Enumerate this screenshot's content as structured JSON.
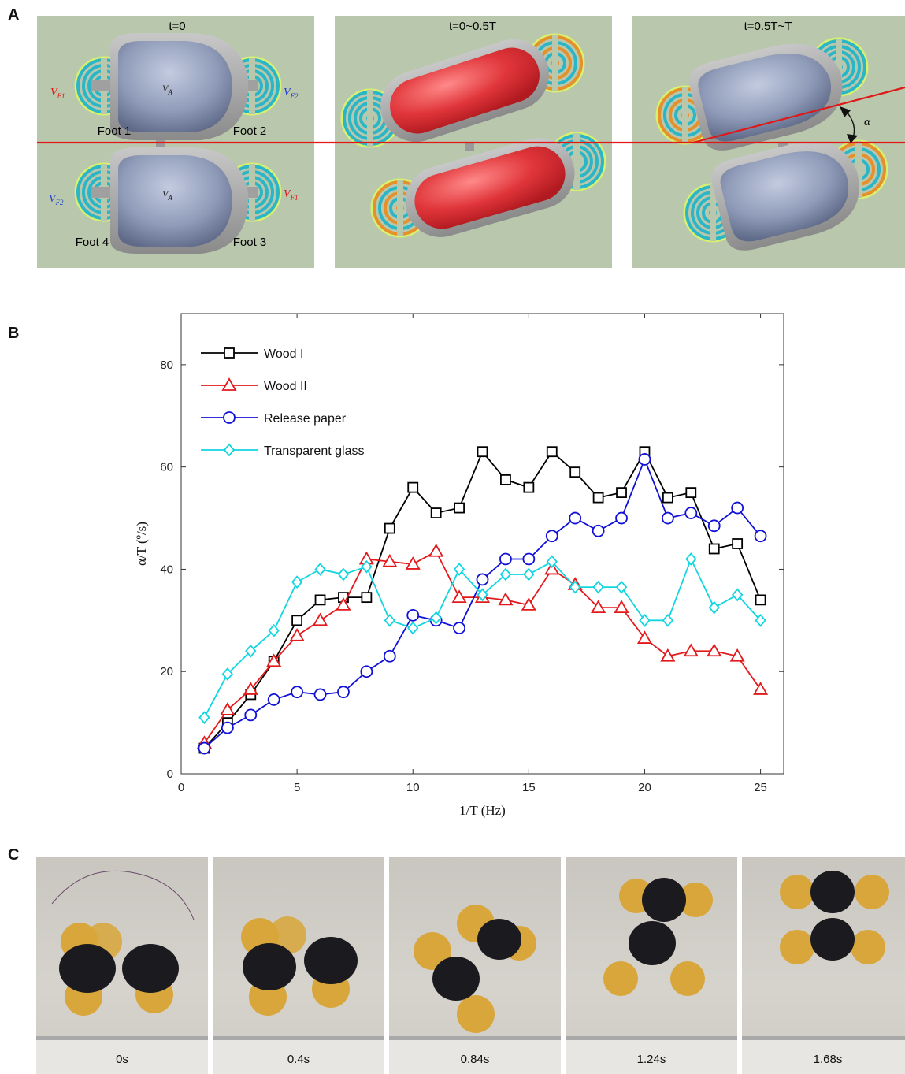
{
  "panels": {
    "a": "A",
    "b": "B",
    "c": "C"
  },
  "panel_a": {
    "frames": [
      {
        "title": "t=0"
      },
      {
        "title": "t=0~0.5T"
      },
      {
        "title": "t=0.5T~T"
      }
    ],
    "foot_labels": [
      "Foot 1",
      "Foot 2",
      "Foot 3",
      "Foot 4"
    ],
    "voltage_labels": {
      "vf1": "V_F1",
      "vf2": "V_F2",
      "va": "V_A"
    },
    "angle_label": "α",
    "colors": {
      "background": "#b9c7ad",
      "body_blue": "#8f9bb8",
      "body_red": "#e0353a",
      "shell": "#a7a7a7",
      "line_red": "#e01818",
      "vf1_color": "#e01818",
      "vf2_color": "#1f3fd0"
    }
  },
  "chart_data": {
    "type": "line",
    "title": "",
    "xlabel": "1/T (Hz)",
    "ylabel": "α/T (º/s)",
    "xlim": [
      0,
      26
    ],
    "ylim": [
      0,
      90
    ],
    "xticks": [
      0,
      5,
      10,
      15,
      20,
      25
    ],
    "yticks": [
      0,
      20,
      40,
      60,
      80
    ],
    "x": [
      1,
      2,
      3,
      4,
      5,
      6,
      7,
      8,
      9,
      10,
      11,
      12,
      13,
      14,
      15,
      16,
      17,
      18,
      19,
      20,
      21,
      22,
      23,
      24,
      25
    ],
    "legend_position": "top-left",
    "grid": false,
    "series": [
      {
        "name": "Wood I",
        "color": "#000000",
        "marker": "square",
        "values": [
          5,
          10,
          15.5,
          22,
          30,
          34,
          34.5,
          34.5,
          48,
          56,
          51,
          52,
          63,
          57.5,
          56,
          63,
          59,
          54,
          55,
          63,
          54,
          55,
          44,
          45,
          34
        ]
      },
      {
        "name": "Wood II",
        "color": "#e31a1c",
        "marker": "triangle",
        "values": [
          6,
          12.5,
          16.5,
          22,
          27,
          30,
          33,
          42,
          41.5,
          41,
          43.5,
          34.5,
          34.5,
          34,
          33,
          40,
          37,
          32.5,
          32.5,
          26.5,
          23,
          24,
          24,
          23,
          16.5
        ]
      },
      {
        "name": "Release paper",
        "color": "#1010d8",
        "marker": "circle",
        "values": [
          5,
          9,
          11.5,
          14.5,
          16,
          15.5,
          16,
          20,
          23,
          31,
          30,
          28.5,
          38,
          42,
          42,
          46.5,
          50,
          47.5,
          50,
          61.5,
          50,
          51,
          48.5,
          52,
          46.5
        ]
      },
      {
        "name": "Transparent glass",
        "color": "#11d6e0",
        "marker": "diamond",
        "values": [
          11,
          19.5,
          24,
          28,
          37.5,
          40,
          39,
          40.5,
          30,
          28.5,
          30.5,
          40,
          35,
          39,
          39,
          41.5,
          36.5,
          36.5,
          36.5,
          30,
          30,
          42,
          32.5,
          35,
          30
        ]
      }
    ]
  },
  "panel_c": {
    "photos": [
      {
        "time": "0s"
      },
      {
        "time": "0.4s"
      },
      {
        "time": "0.84s"
      },
      {
        "time": "1.24s"
      },
      {
        "time": "1.68s"
      }
    ]
  }
}
